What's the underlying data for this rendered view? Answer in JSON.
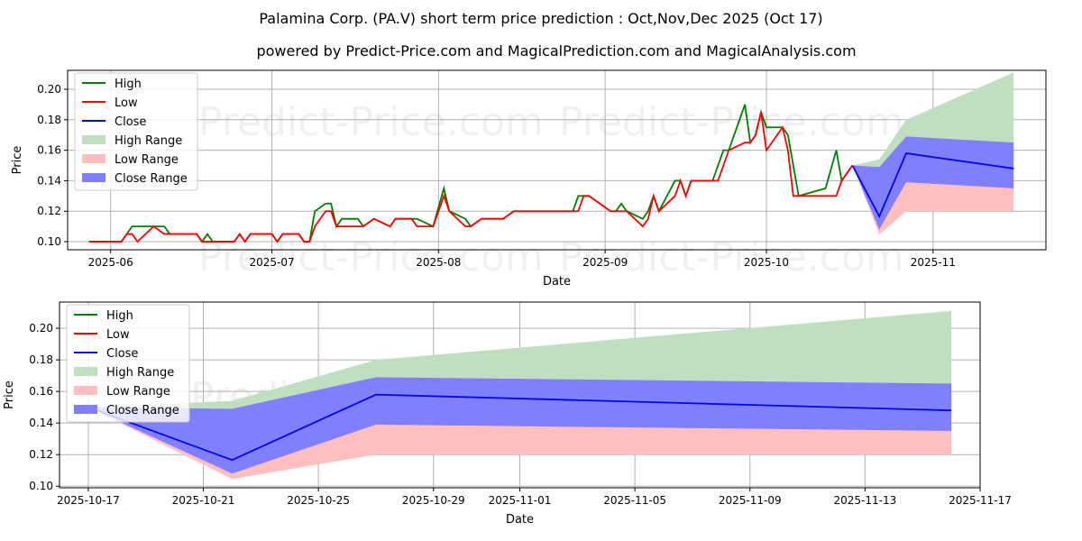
{
  "title": "Palamina Corp. (PA.V) short term price prediction : Oct,Nov,Dec 2025 (Oct 17)",
  "subtitle": "powered by Predict-Price.com and MagicalPrediction.com and MagicalAnalysis.com",
  "watermark": "Predict-Price.com",
  "colors": {
    "high": "#008000",
    "low": "#ff0000",
    "close": "#0000ff",
    "high_range": "#c0dfc0",
    "low_range": "#ffbfbf",
    "close_range": "#8080ff"
  },
  "legend": [
    "High",
    "Low",
    "Close",
    "High Range",
    "Low Range",
    "Close Range"
  ],
  "chart_data": [
    {
      "type": "line",
      "xlabel": "Date",
      "ylabel": "Price",
      "xlim": [
        "2025-05-24",
        "2025-11-22"
      ],
      "ylim": [
        0.0947,
        0.2124
      ],
      "yticks": [
        "0.10",
        "0.12",
        "0.14",
        "0.16",
        "0.18",
        "0.20"
      ],
      "xticks": [
        "2025-06",
        "2025-07",
        "2025-08",
        "2025-09",
        "2025-10",
        "2025-11"
      ],
      "grid": true,
      "legend_position": "top-left",
      "history": [
        [
          "2025-05-28",
          0.1,
          0.1
        ],
        [
          "2025-06-03",
          0.1,
          0.1
        ],
        [
          "2025-06-04",
          0.105,
          0.105
        ],
        [
          "2025-06-05",
          0.11,
          0.105
        ],
        [
          "2025-06-06",
          0.11,
          0.1
        ],
        [
          "2025-06-09",
          0.11,
          0.11
        ],
        [
          "2025-06-11",
          0.11,
          0.105
        ],
        [
          "2025-06-12",
          0.105,
          0.105
        ],
        [
          "2025-06-17",
          0.105,
          0.105
        ],
        [
          "2025-06-18",
          0.1,
          0.1
        ],
        [
          "2025-06-19",
          0.105,
          0.1
        ],
        [
          "2025-06-20",
          0.1,
          0.1
        ],
        [
          "2025-06-24",
          0.1,
          0.1
        ],
        [
          "2025-06-25",
          0.105,
          0.105
        ],
        [
          "2025-06-26",
          0.1,
          0.1
        ],
        [
          "2025-06-27",
          0.105,
          0.105
        ],
        [
          "2025-07-01",
          0.105,
          0.105
        ],
        [
          "2025-07-02",
          0.1,
          0.1
        ],
        [
          "2025-07-03",
          0.105,
          0.105
        ],
        [
          "2025-07-06",
          0.105,
          0.105
        ],
        [
          "2025-07-07",
          0.1,
          0.1
        ],
        [
          "2025-07-08",
          0.1,
          0.1
        ],
        [
          "2025-07-09",
          0.12,
          0.11
        ],
        [
          "2025-07-11",
          0.125,
          0.12
        ],
        [
          "2025-07-12",
          0.125,
          0.12
        ],
        [
          "2025-07-13",
          0.11,
          0.11
        ],
        [
          "2025-07-14",
          0.115,
          0.11
        ],
        [
          "2025-07-17",
          0.115,
          0.11
        ],
        [
          "2025-07-18",
          0.11,
          0.11
        ],
        [
          "2025-07-20",
          0.115,
          0.115
        ],
        [
          "2025-07-23",
          0.11,
          0.11
        ],
        [
          "2025-07-24",
          0.115,
          0.115
        ],
        [
          "2025-07-27",
          0.115,
          0.115
        ],
        [
          "2025-07-28",
          0.115,
          0.11
        ],
        [
          "2025-07-31",
          0.11,
          0.11
        ],
        [
          "2025-08-02",
          0.135,
          0.13
        ],
        [
          "2025-08-03",
          0.12,
          0.12
        ],
        [
          "2025-08-06",
          0.115,
          0.11
        ],
        [
          "2025-08-07",
          0.11,
          0.11
        ],
        [
          "2025-08-09",
          0.115,
          0.115
        ],
        [
          "2025-08-13",
          0.115,
          0.115
        ],
        [
          "2025-08-15",
          0.12,
          0.12
        ],
        [
          "2025-08-26",
          0.12,
          0.12
        ],
        [
          "2025-08-27",
          0.13,
          0.12
        ],
        [
          "2025-08-28",
          0.13,
          0.13
        ],
        [
          "2025-08-29",
          0.13,
          0.13
        ],
        [
          "2025-09-02",
          0.12,
          0.12
        ],
        [
          "2025-09-03",
          0.12,
          0.12
        ],
        [
          "2025-09-04",
          0.125,
          0.12
        ],
        [
          "2025-09-05",
          0.12,
          0.12
        ],
        [
          "2025-09-08",
          0.115,
          0.11
        ],
        [
          "2025-09-09",
          0.12,
          0.115
        ],
        [
          "2025-09-10",
          0.13,
          0.13
        ],
        [
          "2025-09-11",
          0.12,
          0.12
        ],
        [
          "2025-09-14",
          0.14,
          0.13
        ],
        [
          "2025-09-15",
          0.14,
          0.14
        ],
        [
          "2025-09-16",
          0.13,
          0.13
        ],
        [
          "2025-09-17",
          0.14,
          0.14
        ],
        [
          "2025-09-21",
          0.14,
          0.14
        ],
        [
          "2025-09-22",
          0.15,
          0.14
        ],
        [
          "2025-09-23",
          0.16,
          0.15
        ],
        [
          "2025-09-24",
          0.16,
          0.16
        ],
        [
          "2025-09-27",
          0.19,
          0.165
        ],
        [
          "2025-09-28",
          0.165,
          0.165
        ],
        [
          "2025-09-29",
          0.17,
          0.17
        ],
        [
          "2025-09-30",
          0.185,
          0.185
        ],
        [
          "2025-10-01",
          0.175,
          0.16
        ],
        [
          "2025-10-04",
          0.175,
          0.175
        ],
        [
          "2025-10-05",
          0.17,
          0.16
        ],
        [
          "2025-10-06",
          0.15,
          0.13
        ],
        [
          "2025-10-07",
          0.13,
          0.13
        ],
        [
          "2025-10-12",
          0.135,
          0.13
        ],
        [
          "2025-10-14",
          0.16,
          0.13
        ],
        [
          "2025-10-15",
          0.14,
          0.14
        ],
        [
          "2025-10-17",
          0.15,
          0.15
        ]
      ]
    },
    {
      "type": "area",
      "xlabel": "Date",
      "ylabel": "Price",
      "xlim": [
        "2025-10-16",
        "2025-11-17"
      ],
      "ylim": [
        0.099,
        0.2166
      ],
      "yticks": [
        "0.10",
        "0.12",
        "0.14",
        "0.16",
        "0.18",
        "0.20"
      ],
      "xticks": [
        "2025-10-17",
        "2025-10-21",
        "2025-10-25",
        "2025-10-29",
        "2025-11-01",
        "2025-11-05",
        "2025-11-09",
        "2025-11-13",
        "2025-11-17"
      ],
      "grid": true,
      "legend_position": "top-left"
    }
  ],
  "forecast": {
    "dates": [
      "2025-10-17",
      "2025-10-22",
      "2025-10-27",
      "2025-11-16"
    ],
    "close": [
      0.15,
      0.1166,
      0.158,
      0.148
    ],
    "high_range_top": [
      0.15,
      0.154,
      0.18,
      0.211
    ],
    "close_range_top": [
      0.15,
      0.149,
      0.169,
      0.165
    ],
    "close_range_bottom": [
      0.15,
      0.108,
      0.139,
      0.135
    ],
    "low_range_bottom": [
      0.15,
      0.1046,
      0.12,
      0.12
    ]
  }
}
